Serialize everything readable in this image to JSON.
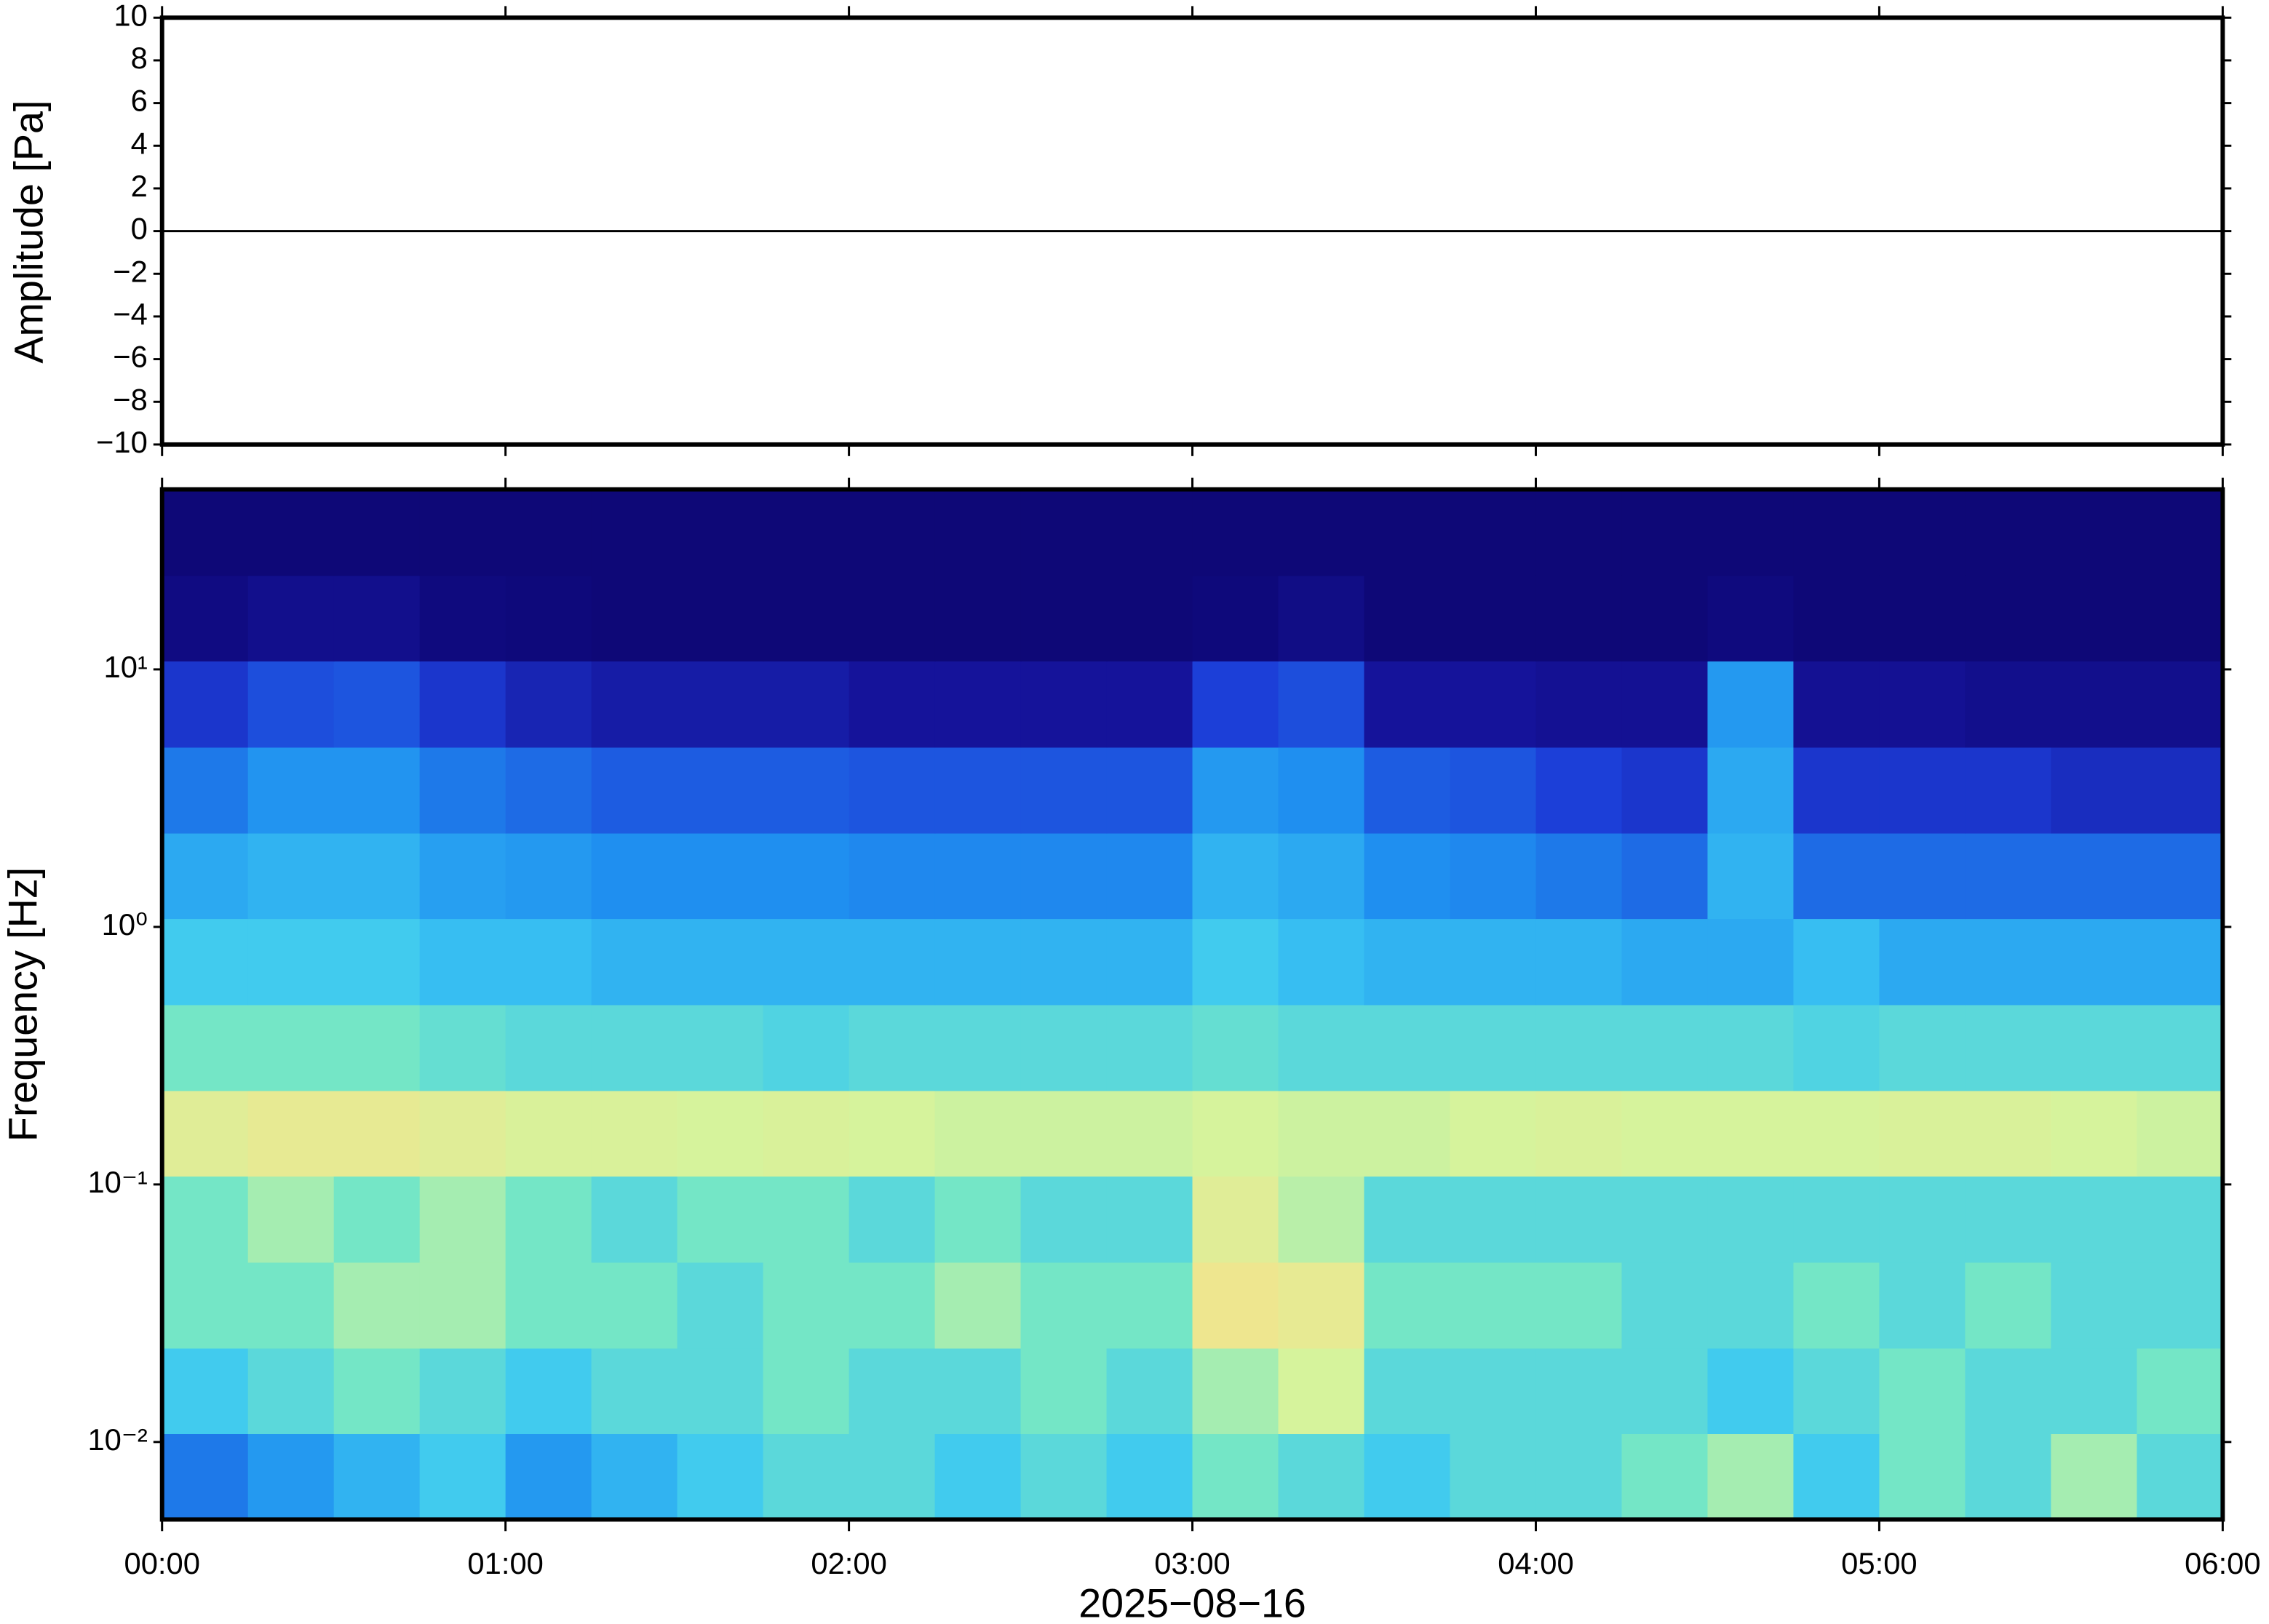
{
  "chart_data": [
    {
      "type": "line",
      "ylabel": "Amplitude [Pa]",
      "color": "#000000",
      "xlim": [
        0,
        6
      ],
      "xticks": [
        0,
        1,
        2,
        3,
        4,
        5,
        6
      ],
      "ylim": [
        -10,
        10
      ],
      "yticks": [
        {
          "value": -10,
          "label": "−10"
        },
        {
          "value": -8,
          "label": "−8"
        },
        {
          "value": -6,
          "label": "−6"
        },
        {
          "value": -4,
          "label": "−4"
        },
        {
          "value": -2,
          "label": "−2"
        },
        0,
        2,
        4,
        6,
        8,
        10
      ],
      "x": [
        0,
        0.5,
        1,
        1.5,
        2,
        2.5,
        3,
        3.5,
        4,
        4.5,
        5,
        5.5,
        6
      ],
      "values": [
        0,
        0,
        0,
        0,
        0,
        0,
        0,
        0,
        0,
        0,
        0,
        0,
        0
      ]
    },
    {
      "type": "heatmap",
      "ylabel": "Frequency [Hz]",
      "xlabel": "2025−08−16",
      "log_y": true,
      "xlim": [
        0,
        6
      ],
      "xticks": [
        {
          "value": 0,
          "label": "00:00"
        },
        {
          "value": 1,
          "label": "01:00"
        },
        {
          "value": 2,
          "label": "02:00"
        },
        {
          "value": 3,
          "label": "03:00"
        },
        {
          "value": 4,
          "label": "04:00"
        },
        {
          "value": 5,
          "label": "05:00"
        },
        {
          "value": 6,
          "label": "06:00"
        }
      ],
      "ylim": [
        0.005,
        50
      ],
      "yticks": [
        {
          "value": 0.01,
          "label": "10⁻²"
        },
        {
          "value": 0.1,
          "label": "10⁻¹"
        },
        {
          "value": 1,
          "label": "10⁰"
        },
        {
          "value": 10,
          "label": "10¹"
        }
      ],
      "colormap": [
        [
          0,
          "#0c0670"
        ],
        [
          0.12,
          "#15139a"
        ],
        [
          0.22,
          "#1c3fd8"
        ],
        [
          0.33,
          "#1f8ff0"
        ],
        [
          0.44,
          "#3cc8f2"
        ],
        [
          0.55,
          "#74e6c6"
        ],
        [
          0.65,
          "#d6f39c"
        ],
        [
          0.75,
          "#f8e08a"
        ],
        [
          0.9,
          "#f0a050"
        ]
      ],
      "time_bins": [
        0,
        0.25,
        0.5,
        0.75,
        1,
        1.25,
        1.5,
        1.75,
        2,
        2.25,
        2.5,
        2.75,
        3,
        3.25,
        3.5,
        3.75,
        4,
        4.25,
        4.5,
        4.75,
        5,
        5.25,
        5.5,
        5.75,
        6
      ],
      "freq_bins": [
        0.005,
        0.0108,
        0.0232,
        0.05,
        0.108,
        0.232,
        0.5,
        1.08,
        2.32,
        5,
        10.8,
        23.2,
        50
      ],
      "z": [
        [
          0.3,
          0.35,
          0.4,
          0.45,
          0.35,
          0.4,
          0.45,
          0.5,
          0.5,
          0.45,
          0.5,
          0.45,
          0.55,
          0.5,
          0.45,
          0.5,
          0.5,
          0.55,
          0.6,
          0.45,
          0.55,
          0.5,
          0.6,
          0.5
        ],
        [
          0.45,
          0.5,
          0.55,
          0.5,
          0.45,
          0.5,
          0.5,
          0.55,
          0.5,
          0.5,
          0.55,
          0.5,
          0.6,
          0.65,
          0.5,
          0.5,
          0.5,
          0.5,
          0.45,
          0.5,
          0.55,
          0.5,
          0.5,
          0.55
        ],
        [
          0.55,
          0.55,
          0.6,
          0.6,
          0.55,
          0.55,
          0.5,
          0.55,
          0.55,
          0.6,
          0.55,
          0.55,
          0.72,
          0.7,
          0.55,
          0.55,
          0.55,
          0.5,
          0.5,
          0.55,
          0.5,
          0.55,
          0.5,
          0.5
        ],
        [
          0.55,
          0.6,
          0.55,
          0.6,
          0.55,
          0.5,
          0.55,
          0.55,
          0.5,
          0.55,
          0.5,
          0.5,
          0.68,
          0.62,
          0.5,
          0.5,
          0.5,
          0.5,
          0.5,
          0.5,
          0.5,
          0.5,
          0.5,
          0.5
        ],
        [
          0.68,
          0.7,
          0.7,
          0.68,
          0.66,
          0.66,
          0.65,
          0.66,
          0.65,
          0.64,
          0.64,
          0.64,
          0.65,
          0.64,
          0.64,
          0.65,
          0.66,
          0.65,
          0.65,
          0.65,
          0.66,
          0.66,
          0.65,
          0.64
        ],
        [
          0.55,
          0.55,
          0.55,
          0.52,
          0.5,
          0.5,
          0.5,
          0.48,
          0.5,
          0.5,
          0.5,
          0.5,
          0.52,
          0.5,
          0.5,
          0.5,
          0.5,
          0.5,
          0.5,
          0.48,
          0.5,
          0.5,
          0.5,
          0.5
        ],
        [
          0.45,
          0.45,
          0.45,
          0.42,
          0.42,
          0.4,
          0.4,
          0.4,
          0.4,
          0.4,
          0.4,
          0.4,
          0.45,
          0.42,
          0.4,
          0.4,
          0.4,
          0.38,
          0.38,
          0.42,
          0.38,
          0.38,
          0.38,
          0.38
        ],
        [
          0.38,
          0.4,
          0.4,
          0.36,
          0.35,
          0.33,
          0.33,
          0.33,
          0.32,
          0.32,
          0.32,
          0.32,
          0.4,
          0.38,
          0.33,
          0.32,
          0.3,
          0.28,
          0.4,
          0.28,
          0.28,
          0.28,
          0.28,
          0.28
        ],
        [
          0.3,
          0.34,
          0.34,
          0.3,
          0.28,
          0.26,
          0.26,
          0.26,
          0.25,
          0.25,
          0.25,
          0.25,
          0.35,
          0.33,
          0.26,
          0.25,
          0.22,
          0.2,
          0.38,
          0.2,
          0.2,
          0.2,
          0.18,
          0.18
        ],
        [
          0.2,
          0.24,
          0.25,
          0.2,
          0.16,
          0.14,
          0.14,
          0.14,
          0.12,
          0.12,
          0.12,
          0.12,
          0.22,
          0.24,
          0.12,
          0.12,
          0.1,
          0.1,
          0.35,
          0.1,
          0.1,
          0.08,
          0.08,
          0.08
        ],
        [
          0.05,
          0.08,
          0.08,
          0.04,
          0.03,
          0.02,
          0.02,
          0.02,
          0.02,
          0.02,
          0.02,
          0.02,
          0.03,
          0.06,
          0.02,
          0.02,
          0.02,
          0.02,
          0.04,
          0.02,
          0.02,
          0.02,
          0.02,
          0.02
        ],
        [
          0.02,
          0.02,
          0.02,
          0.02,
          0.02,
          0.02,
          0.02,
          0.02,
          0.02,
          0.02,
          0.02,
          0.02,
          0.02,
          0.02,
          0.02,
          0.02,
          0.02,
          0.02,
          0.02,
          0.02,
          0.02,
          0.02,
          0.02,
          0.02
        ]
      ]
    }
  ]
}
